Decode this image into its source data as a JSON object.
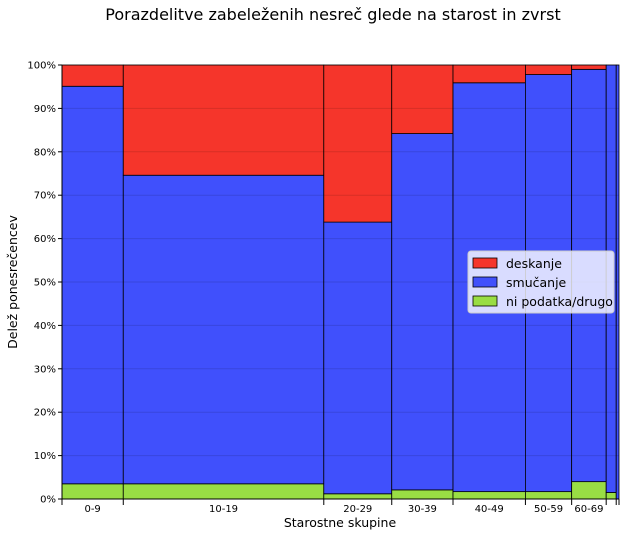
{
  "chart_data": {
    "type": "marimekko",
    "title": "Porazdelitve zabeleženih nesreč glede na starost in zvrst",
    "xlabel": "Starostne skupine",
    "ylabel": "Delež ponesrečencev",
    "y_ticks": [
      "0%",
      "10%",
      "20%",
      "30%",
      "40%",
      "50%",
      "60%",
      "70%",
      "80%",
      "90%",
      "100%"
    ],
    "ylim": [
      0,
      100
    ],
    "grid": "horizontal",
    "legend_placement": "center-right",
    "categories": [
      "0-9",
      "10-19",
      "20-29",
      "30-39",
      "40-49",
      "50-59",
      "60-69",
      "",
      ""
    ],
    "width_share": [
      0.11,
      0.36,
      0.122,
      0.11,
      0.13,
      0.083,
      0.062,
      0.018,
      0.005
    ],
    "series": [
      {
        "name": "ni podatka/drugo",
        "color": "#99dd44",
        "values": [
          3.5,
          3.5,
          1.2,
          2.1,
          1.7,
          1.7,
          4.0,
          1.5,
          0
        ]
      },
      {
        "name": "smučanje",
        "color": "#4050fc",
        "values": [
          91.6,
          71.1,
          62.6,
          82.1,
          94.2,
          96.1,
          95.0,
          98.5,
          100
        ]
      },
      {
        "name": "deskanje",
        "color": "#f5352b",
        "values": [
          4.9,
          25.4,
          36.2,
          15.8,
          4.1,
          2.2,
          1.0,
          0,
          0
        ]
      }
    ],
    "legend_order": [
      "deskanje",
      "smučanje",
      "ni podatka/drugo"
    ]
  }
}
